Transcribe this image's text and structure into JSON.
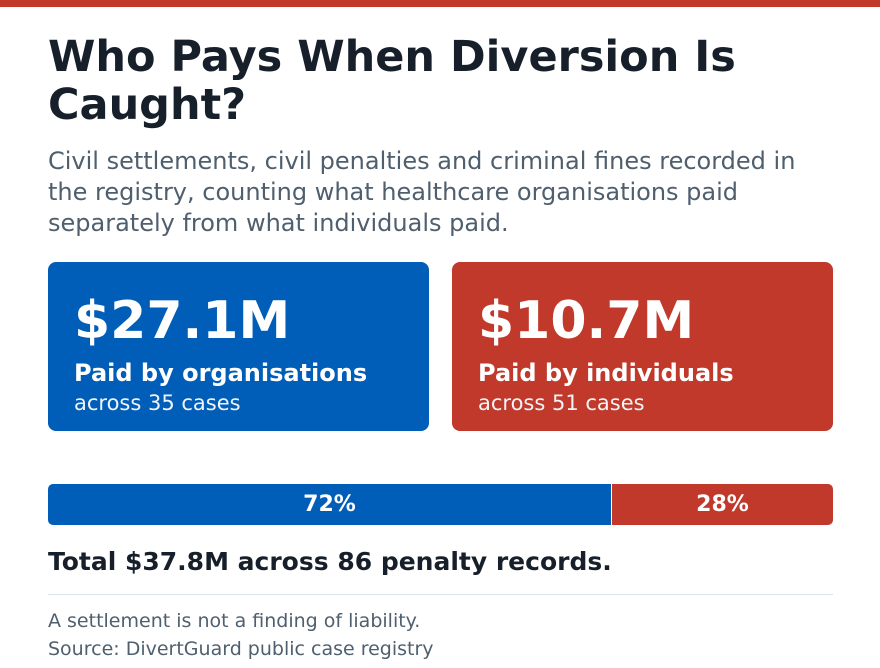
{
  "title": "Who Pays When Diversion Is Caught?",
  "subtitle": "Civil settlements, civil penalties and criminal fines recorded in the registry, counting what healthcare organisations paid separately from what individuals paid.",
  "colors": {
    "organisations": "#005eb8",
    "individuals": "#c0392b",
    "accent_bar": "#c0392b"
  },
  "cards": [
    {
      "amount": "$27.1M",
      "label": "Paid by organisations",
      "sub": "across 35 cases"
    },
    {
      "amount": "$10.7M",
      "label": "Paid by individuals",
      "sub": "across 51 cases"
    }
  ],
  "total": "Total $37.8M across 86 penalty records.",
  "footnotes": {
    "disclaimer": "A settlement is not a finding of liability.",
    "source": "Source: DivertGuard public case registry"
  },
  "chart_data": {
    "type": "bar",
    "orientation": "horizontal-stacked",
    "categories": [
      "Paid by organisations",
      "Paid by individuals"
    ],
    "values": [
      27.1,
      10.7
    ],
    "units": "$M",
    "cases": [
      35,
      51
    ],
    "percent_labels": [
      "72%",
      "28%"
    ],
    "total": 37.8,
    "total_records": 86
  }
}
